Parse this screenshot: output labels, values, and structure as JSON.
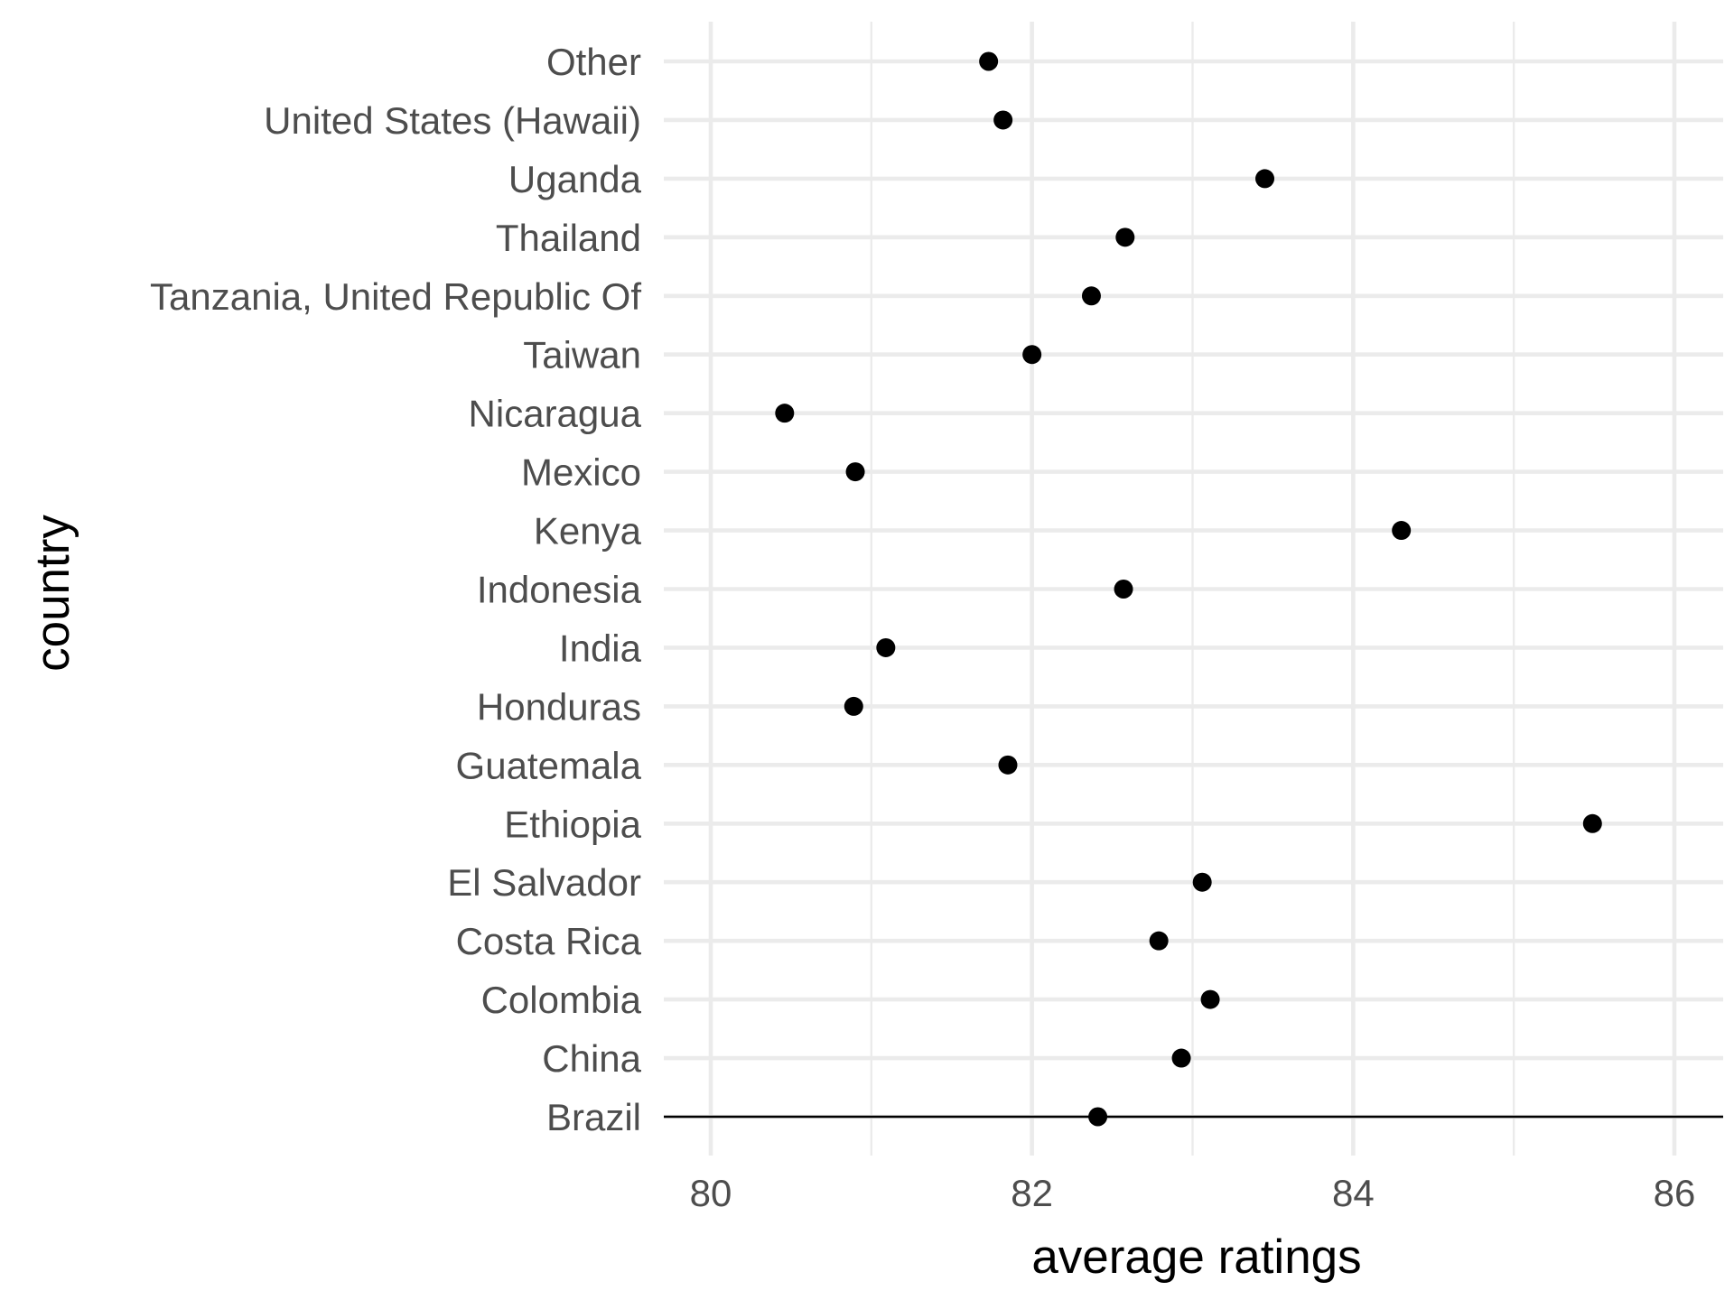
{
  "chart_data": {
    "type": "scatter",
    "title": "",
    "xlabel": "average ratings",
    "ylabel": "country",
    "xlim": [
      79.7,
      86.3
    ],
    "x_ticks": [
      80,
      82,
      84,
      86
    ],
    "x_tick_labels": [
      "80",
      "82",
      "84",
      "86"
    ],
    "grid": true,
    "categories": [
      "Brazil",
      "China",
      "Colombia",
      "Costa Rica",
      "El Salvador",
      "Ethiopia",
      "Guatemala",
      "Honduras",
      "India",
      "Indonesia",
      "Kenya",
      "Mexico",
      "Nicaragua",
      "Taiwan",
      "Tanzania, United Republic Of",
      "Thailand",
      "Uganda",
      "United States (Hawaii)",
      "Other"
    ],
    "values": [
      82.41,
      82.93,
      83.11,
      82.79,
      83.06,
      85.49,
      81.85,
      80.89,
      81.09,
      82.57,
      84.3,
      80.9,
      80.46,
      82.0,
      82.37,
      82.58,
      83.45,
      81.82,
      81.73
    ],
    "point_color": "#000000",
    "grid_color": "#ebebeb",
    "text_color": "#4d4d4d"
  }
}
